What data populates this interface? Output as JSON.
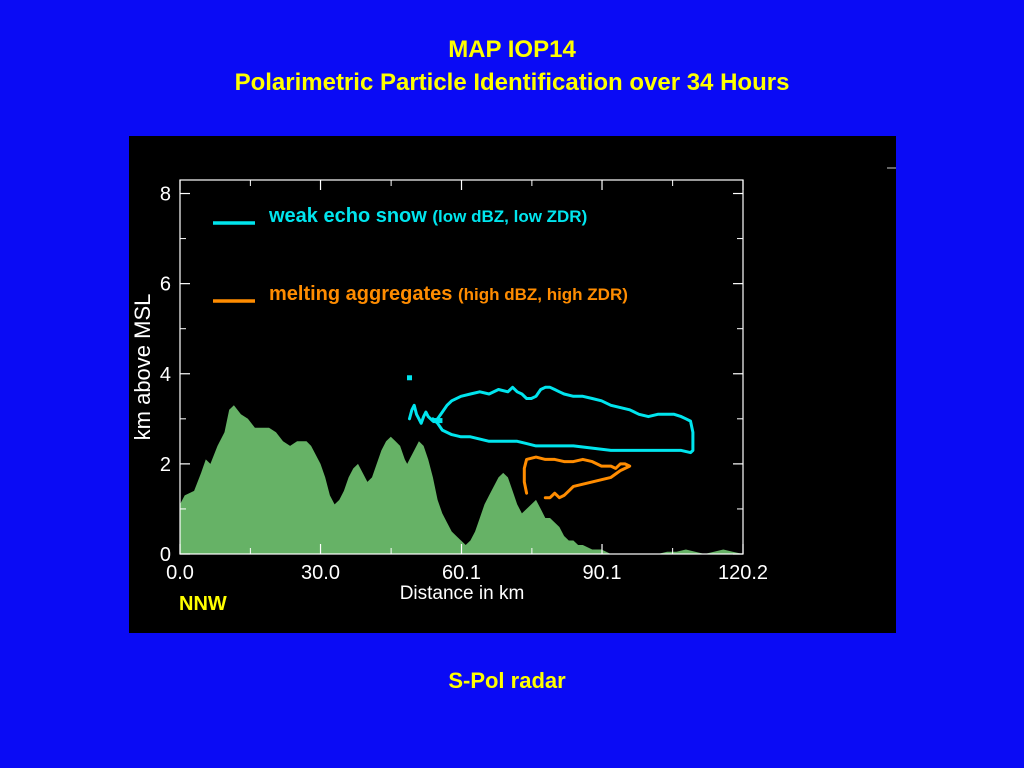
{
  "slide": {
    "title_line1": "MAP IOP14",
    "title_line2": "Polarimetric Particle Identification over 34 Hours",
    "caption": "S-Pol radar",
    "direction_label": "NNW",
    "colors": {
      "background": "#0a0bf5",
      "title_text": "#ffff00",
      "panel": "#000000",
      "terrain": "#66b266",
      "snow": "#00e5ee",
      "aggregates": "#ff8c00",
      "axes": "#ffffff"
    }
  },
  "chart_data": {
    "type": "area",
    "xlabel": "Distance in km",
    "ylabel": "km above MSL",
    "xlim": [
      0,
      120.2
    ],
    "ylim": [
      0,
      8.3
    ],
    "x_ticks": [
      "0.0",
      "30.0",
      "60.1",
      "90.1",
      "120.2"
    ],
    "x_tick_values": [
      0,
      30.0,
      60.1,
      90.1,
      120.2
    ],
    "y_ticks": [
      "0",
      "2",
      "4",
      "6",
      "8"
    ],
    "y_tick_values": [
      0,
      2,
      4,
      6,
      8
    ],
    "grid": false,
    "legend": [
      {
        "name": "weak echo snow",
        "detail": "(low dBZ, low ZDR)",
        "color": "#00e5ee"
      },
      {
        "name": "melting aggregates",
        "detail": "(high dBZ, high ZDR)",
        "color": "#ff8c00"
      }
    ],
    "terrain": {
      "name": "terrain",
      "x": [
        0,
        1,
        3,
        4.5,
        5.5,
        6.5,
        8,
        9.5,
        10.5,
        11.5,
        13,
        14.5,
        16,
        17.5,
        19,
        20.5,
        22,
        23.5,
        25,
        27,
        28,
        29,
        30,
        31,
        32,
        33,
        34,
        35,
        36,
        37,
        38,
        39,
        40,
        41,
        42,
        43,
        44,
        45,
        46,
        47,
        48,
        48.5,
        49,
        50,
        51,
        52,
        53,
        54,
        55,
        56,
        57,
        58,
        59,
        60,
        61,
        62,
        63,
        64,
        65,
        66,
        67,
        68,
        69,
        70,
        71,
        72,
        73,
        74,
        75,
        76,
        77,
        78,
        79,
        80,
        81,
        82,
        83,
        84,
        85,
        86,
        87,
        88,
        89,
        90,
        91,
        92,
        94,
        96,
        98,
        100,
        102,
        104,
        106,
        108,
        110,
        112,
        114,
        116,
        118,
        120.2
      ],
      "y": [
        1.1,
        1.3,
        1.4,
        1.8,
        2.1,
        2.0,
        2.4,
        2.7,
        3.2,
        3.3,
        3.1,
        3.0,
        2.8,
        2.8,
        2.8,
        2.7,
        2.5,
        2.4,
        2.5,
        2.5,
        2.4,
        2.2,
        2.0,
        1.7,
        1.3,
        1.1,
        1.2,
        1.4,
        1.7,
        1.9,
        2.0,
        1.8,
        1.6,
        1.7,
        2.0,
        2.3,
        2.5,
        2.6,
        2.5,
        2.4,
        2.1,
        2.0,
        2.1,
        2.3,
        2.5,
        2.4,
        2.1,
        1.7,
        1.2,
        0.9,
        0.7,
        0.5,
        0.4,
        0.3,
        0.2,
        0.3,
        0.5,
        0.8,
        1.1,
        1.3,
        1.5,
        1.7,
        1.8,
        1.7,
        1.4,
        1.1,
        0.9,
        1.0,
        1.1,
        1.2,
        1.0,
        0.8,
        0.8,
        0.7,
        0.6,
        0.4,
        0.3,
        0.3,
        0.2,
        0.2,
        0.15,
        0.1,
        0.1,
        0.1,
        0.05,
        0.0,
        0.0,
        0.0,
        0.0,
        0.0,
        0.0,
        0.05,
        0.05,
        0.1,
        0.05,
        0.0,
        0.05,
        0.1,
        0.05,
        0.0
      ]
    },
    "snow_contour": {
      "name": "weak echo snow",
      "x": [
        49,
        49.5,
        50,
        50.5,
        51,
        51.5,
        52,
        52.5,
        53,
        54,
        55,
        56,
        57,
        58,
        60,
        62,
        64,
        66,
        68,
        70,
        71,
        72,
        73,
        74,
        75,
        76,
        77,
        78,
        79,
        80,
        81,
        82,
        84,
        86,
        88,
        90,
        92,
        94,
        96,
        98,
        100,
        102,
        104,
        105.5,
        107,
        108,
        109,
        109.5,
        109.5,
        109,
        107,
        104,
        100,
        96,
        92,
        88,
        84,
        80,
        78,
        76,
        74,
        72,
        70,
        68,
        66,
        64,
        62,
        60,
        58,
        56,
        55,
        54
      ],
      "y": [
        3.0,
        3.2,
        3.3,
        3.1,
        3.0,
        2.9,
        3.05,
        3.15,
        3.05,
        2.95,
        3.0,
        3.15,
        3.3,
        3.4,
        3.5,
        3.55,
        3.6,
        3.55,
        3.65,
        3.6,
        3.7,
        3.6,
        3.55,
        3.45,
        3.45,
        3.5,
        3.65,
        3.7,
        3.7,
        3.65,
        3.6,
        3.55,
        3.5,
        3.5,
        3.45,
        3.4,
        3.3,
        3.25,
        3.2,
        3.1,
        3.05,
        3.1,
        3.1,
        3.1,
        3.05,
        3.0,
        2.95,
        2.7,
        2.3,
        2.25,
        2.3,
        2.3,
        2.3,
        2.3,
        2.3,
        2.35,
        2.4,
        2.4,
        2.4,
        2.4,
        2.45,
        2.5,
        2.5,
        2.5,
        2.5,
        2.55,
        2.6,
        2.6,
        2.65,
        2.75,
        2.9,
        3.0
      ],
      "marks": [
        {
          "x": 49,
          "y": 3.9
        },
        {
          "x": 54.5,
          "y": 2.95
        },
        {
          "x": 55.5,
          "y": 2.95
        }
      ]
    },
    "aggregates_contour": {
      "name": "melting aggregates",
      "x": [
        74,
        73.5,
        73.5,
        74,
        76,
        78,
        80,
        82,
        84,
        86,
        88,
        89,
        90,
        91,
        92,
        93,
        94,
        95,
        96,
        94,
        92,
        90,
        88,
        86,
        84,
        83,
        82,
        81,
        80,
        79,
        78
      ],
      "y": [
        1.35,
        1.6,
        1.9,
        2.1,
        2.15,
        2.1,
        2.1,
        2.05,
        2.05,
        2.1,
        2.05,
        2.0,
        1.95,
        1.95,
        1.95,
        1.9,
        2.0,
        2.0,
        1.95,
        1.85,
        1.7,
        1.65,
        1.6,
        1.55,
        1.5,
        1.4,
        1.3,
        1.25,
        1.35,
        1.25,
        1.25
      ]
    }
  }
}
